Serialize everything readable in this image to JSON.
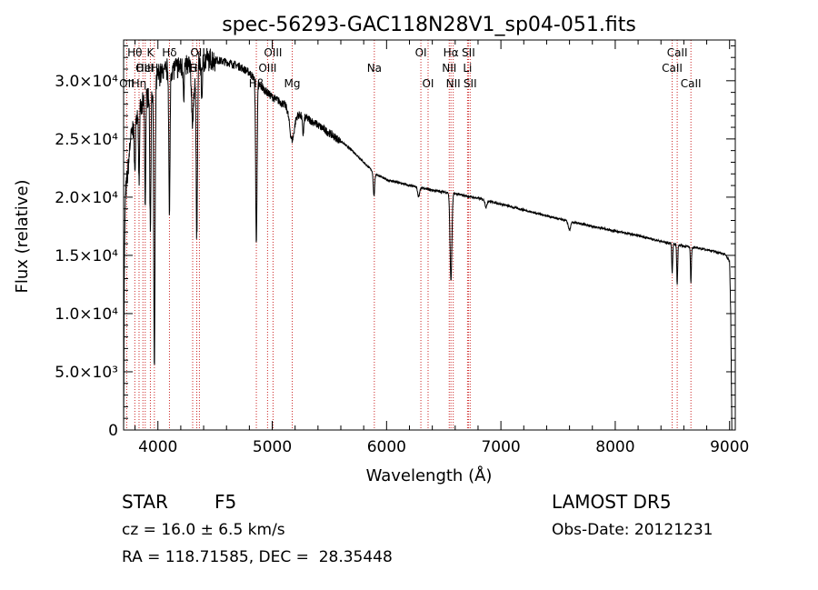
{
  "chart_data": {
    "type": "line",
    "title": "spec-56293-GAC118N28V1_sp04-051.fits",
    "xlabel": "Wavelength (Å)",
    "ylabel": "Flux (relative)",
    "xlim": [
      3700,
      9050
    ],
    "ylim": [
      0,
      33500
    ],
    "x_ticks": [
      {
        "value": 4000,
        "label": "4000"
      },
      {
        "value": 5000,
        "label": "5000"
      },
      {
        "value": 6000,
        "label": "6000"
      },
      {
        "value": 7000,
        "label": "7000"
      },
      {
        "value": 8000,
        "label": "8000"
      },
      {
        "value": 9000,
        "label": "9000"
      }
    ],
    "y_ticks": [
      {
        "value": 0,
        "label": "0"
      },
      {
        "value": 5000,
        "label": "5.0×10³"
      },
      {
        "value": 10000,
        "label": "1.0×10⁴"
      },
      {
        "value": 15000,
        "label": "1.5×10⁴"
      },
      {
        "value": 20000,
        "label": "2.0×10⁴"
      },
      {
        "value": 25000,
        "label": "2.5×10⁴"
      },
      {
        "value": 30000,
        "label": "3.0×10⁴"
      }
    ],
    "line_color": "#000000",
    "marker_line_color": "#cc2222",
    "spectrum_anchors": [
      [
        3700,
        0
      ],
      [
        3706,
        14000
      ],
      [
        3715,
        20000
      ],
      [
        3735,
        22000
      ],
      [
        3760,
        25000
      ],
      [
        3800,
        26500
      ],
      [
        3850,
        27500
      ],
      [
        3900,
        28500
      ],
      [
        3950,
        29500
      ],
      [
        4000,
        30500
      ],
      [
        4050,
        30800
      ],
      [
        4100,
        31000
      ],
      [
        4200,
        31200
      ],
      [
        4300,
        31400
      ],
      [
        4400,
        31700
      ],
      [
        4500,
        31800
      ],
      [
        4600,
        31600
      ],
      [
        4700,
        31300
      ],
      [
        4800,
        30700
      ],
      [
        4900,
        29500
      ],
      [
        5000,
        28600
      ],
      [
        5100,
        28000
      ],
      [
        5200,
        27200
      ],
      [
        5300,
        26800
      ],
      [
        5400,
        26200
      ],
      [
        5500,
        25500
      ],
      [
        5600,
        24800
      ],
      [
        5700,
        24000
      ],
      [
        5800,
        23000
      ],
      [
        5900,
        22000
      ],
      [
        6000,
        21500
      ],
      [
        6200,
        21000
      ],
      [
        6400,
        20600
      ],
      [
        6600,
        20300
      ],
      [
        6800,
        19900
      ],
      [
        7000,
        19400
      ],
      [
        7200,
        18900
      ],
      [
        7400,
        18400
      ],
      [
        7600,
        17900
      ],
      [
        7800,
        17500
      ],
      [
        8000,
        17100
      ],
      [
        8200,
        16700
      ],
      [
        8400,
        16200
      ],
      [
        8600,
        15800
      ],
      [
        8800,
        15500
      ],
      [
        8960,
        15100
      ],
      [
        9000,
        14500
      ],
      [
        9010,
        10000
      ],
      [
        9020,
        0
      ]
    ],
    "absorption_features": [
      [
        3934,
        12000,
        5
      ],
      [
        3969,
        17000,
        5
      ],
      [
        3970,
        8000,
        7
      ],
      [
        3889,
        9000,
        4
      ],
      [
        3835,
        6000,
        4
      ],
      [
        3798,
        5000,
        4
      ],
      [
        4101,
        13000,
        5
      ],
      [
        4226,
        2500,
        4
      ],
      [
        4305,
        5000,
        10
      ],
      [
        4340,
        15000,
        6
      ],
      [
        4384,
        3000,
        5
      ],
      [
        4861,
        14000,
        6
      ],
      [
        5172,
        2500,
        20
      ],
      [
        5270,
        1500,
        6
      ],
      [
        5890,
        2000,
        6
      ],
      [
        6280,
        800,
        8
      ],
      [
        6563,
        7500,
        8
      ],
      [
        6870,
        600,
        8
      ],
      [
        7600,
        700,
        10
      ],
      [
        8498,
        2500,
        4
      ],
      [
        8542,
        3500,
        4
      ],
      [
        8662,
        3000,
        4
      ]
    ],
    "line_markers": [
      {
        "wavelength": 3727,
        "label": "OII",
        "row": 2
      },
      {
        "wavelength": 3798,
        "label": "Hθ",
        "row": 0
      },
      {
        "wavelength": 3835,
        "label": "Hη",
        "row": 2
      },
      {
        "wavelength": 3869,
        "label": "OII",
        "row": 1
      },
      {
        "wavelength": 3889,
        "label": "HeI",
        "row": 1
      },
      {
        "wavelength": 3934,
        "label": "K",
        "row": 0
      },
      {
        "wavelength": 3969,
        "label": "H",
        "row": 1
      },
      {
        "wavelength": 4101,
        "label": "Hδ",
        "row": 0
      },
      {
        "wavelength": 4304,
        "label": "G",
        "row": 1
      },
      {
        "wavelength": 4340,
        "label": "Hγ",
        "row": 1
      },
      {
        "wavelength": 4363,
        "label": "OIII",
        "row": 0
      },
      {
        "wavelength": 4861,
        "label": "Hβ",
        "row": 2
      },
      {
        "wavelength": 4959,
        "label": "OIII",
        "row": 1
      },
      {
        "wavelength": 5007,
        "label": "OIII",
        "row": 0
      },
      {
        "wavelength": 5175,
        "label": "Mg",
        "row": 2
      },
      {
        "wavelength": 5893,
        "label": "Na",
        "row": 1
      },
      {
        "wavelength": 6300,
        "label": "OI",
        "row": 0
      },
      {
        "wavelength": 6363,
        "label": "OI",
        "row": 2
      },
      {
        "wavelength": 6548,
        "label": "NII",
        "row": 1
      },
      {
        "wavelength": 6563,
        "label": "Hα",
        "row": 0
      },
      {
        "wavelength": 6583,
        "label": "NII",
        "row": 2
      },
      {
        "wavelength": 6708,
        "label": "Li",
        "row": 1
      },
      {
        "wavelength": 6716,
        "label": "SII",
        "row": 0
      },
      {
        "wavelength": 6731,
        "label": "SII",
        "row": 2
      },
      {
        "wavelength": 8498,
        "label": "CaII",
        "row": 1
      },
      {
        "wavelength": 8542,
        "label": "CaII",
        "row": 0
      },
      {
        "wavelength": 8662,
        "label": "CaII",
        "row": 2
      }
    ]
  },
  "info": {
    "class_label": "STAR",
    "subclass": "F5",
    "survey": "LAMOST DR5",
    "redshift_text": "cz = 16.0 ± 6.5 km/s",
    "obs_date": "Obs-Date: 20121231",
    "coords": "RA = 118.71585, DEC =  28.35448"
  }
}
